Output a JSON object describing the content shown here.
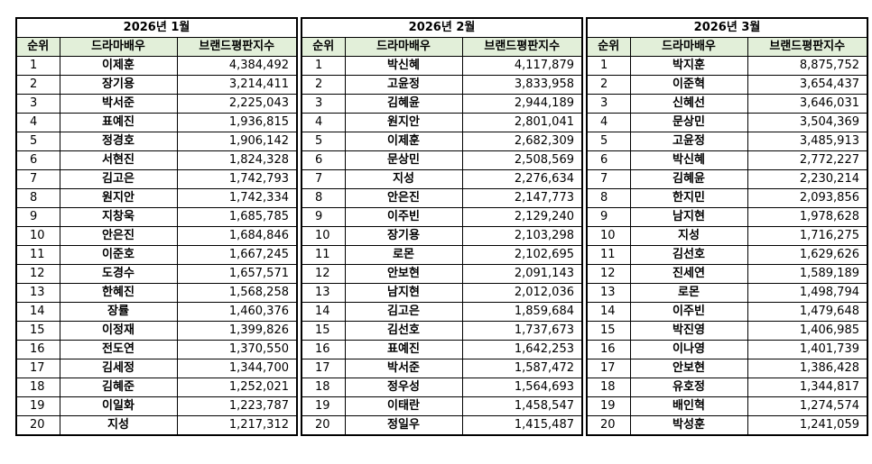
{
  "tables": [
    {
      "title": "2026년 1월",
      "headers": [
        "순위",
        "드라마배우",
        "브랜드평판지수"
      ],
      "rows": [
        [
          1,
          "이제훈",
          "4,384,492"
        ],
        [
          2,
          "장기용",
          "3,214,411"
        ],
        [
          3,
          "박서준",
          "2,225,043"
        ],
        [
          4,
          "표예진",
          "1,936,815"
        ],
        [
          5,
          "정경호",
          "1,906,142"
        ],
        [
          6,
          "서현진",
          "1,824,328"
        ],
        [
          7,
          "김고은",
          "1,742,793"
        ],
        [
          8,
          "원지안",
          "1,742,334"
        ],
        [
          9,
          "지창욱",
          "1,685,785"
        ],
        [
          10,
          "안은진",
          "1,684,846"
        ],
        [
          11,
          "이준호",
          "1,667,245"
        ],
        [
          12,
          "도경수",
          "1,657,571"
        ],
        [
          13,
          "한혜진",
          "1,568,258"
        ],
        [
          14,
          "장률",
          "1,460,376"
        ],
        [
          15,
          "이정재",
          "1,399,826"
        ],
        [
          16,
          "전도연",
          "1,370,550"
        ],
        [
          17,
          "김세정",
          "1,344,700"
        ],
        [
          18,
          "김혜준",
          "1,252,021"
        ],
        [
          19,
          "이일화",
          "1,223,787"
        ],
        [
          20,
          "지성",
          "1,217,312"
        ]
      ]
    },
    {
      "title": "2026년 2월",
      "headers": [
        "순위",
        "드라마배우",
        "브랜드평판지수"
      ],
      "rows": [
        [
          1,
          "박신혜",
          "4,117,879"
        ],
        [
          2,
          "고윤정",
          "3,833,958"
        ],
        [
          3,
          "김혜윤",
          "2,944,189"
        ],
        [
          4,
          "원지안",
          "2,801,041"
        ],
        [
          5,
          "이제훈",
          "2,682,309"
        ],
        [
          6,
          "문상민",
          "2,508,569"
        ],
        [
          7,
          "지성",
          "2,276,634"
        ],
        [
          8,
          "안은진",
          "2,147,773"
        ],
        [
          9,
          "이주빈",
          "2,129,240"
        ],
        [
          10,
          "장기용",
          "2,103,298"
        ],
        [
          11,
          "로몬",
          "2,102,695"
        ],
        [
          12,
          "안보현",
          "2,091,143"
        ],
        [
          13,
          "남지현",
          "2,012,036"
        ],
        [
          14,
          "김고은",
          "1,859,684"
        ],
        [
          15,
          "김선호",
          "1,737,673"
        ],
        [
          16,
          "표예진",
          "1,642,253"
        ],
        [
          17,
          "박서준",
          "1,587,472"
        ],
        [
          18,
          "정우성",
          "1,564,693"
        ],
        [
          19,
          "이태란",
          "1,458,547"
        ],
        [
          20,
          "정일우",
          "1,415,487"
        ]
      ]
    },
    {
      "title": "2026년 3월",
      "headers": [
        "순위",
        "드라마배우",
        "브랜드평판지수"
      ],
      "rows": [
        [
          1,
          "박지훈",
          "8,875,752"
        ],
        [
          2,
          "이준혁",
          "3,654,437"
        ],
        [
          3,
          "신혜선",
          "3,646,031"
        ],
        [
          4,
          "문상민",
          "3,504,369"
        ],
        [
          5,
          "고윤정",
          "3,485,913"
        ],
        [
          6,
          "박신혜",
          "2,772,227"
        ],
        [
          7,
          "김혜윤",
          "2,230,214"
        ],
        [
          8,
          "한지민",
          "2,093,856"
        ],
        [
          9,
          "남지현",
          "1,978,628"
        ],
        [
          10,
          "지성",
          "1,716,275"
        ],
        [
          11,
          "김선호",
          "1,629,626"
        ],
        [
          12,
          "진세연",
          "1,589,189"
        ],
        [
          13,
          "로몬",
          "1,498,794"
        ],
        [
          14,
          "이주빈",
          "1,479,648"
        ],
        [
          15,
          "박진영",
          "1,406,985"
        ],
        [
          16,
          "이나영",
          "1,401,739"
        ],
        [
          17,
          "안보현",
          "1,386,428"
        ],
        [
          18,
          "유호정",
          "1,344,817"
        ],
        [
          19,
          "배인혁",
          "1,274,574"
        ],
        [
          20,
          "박성훈",
          "1,241,059"
        ]
      ]
    }
  ]
}
